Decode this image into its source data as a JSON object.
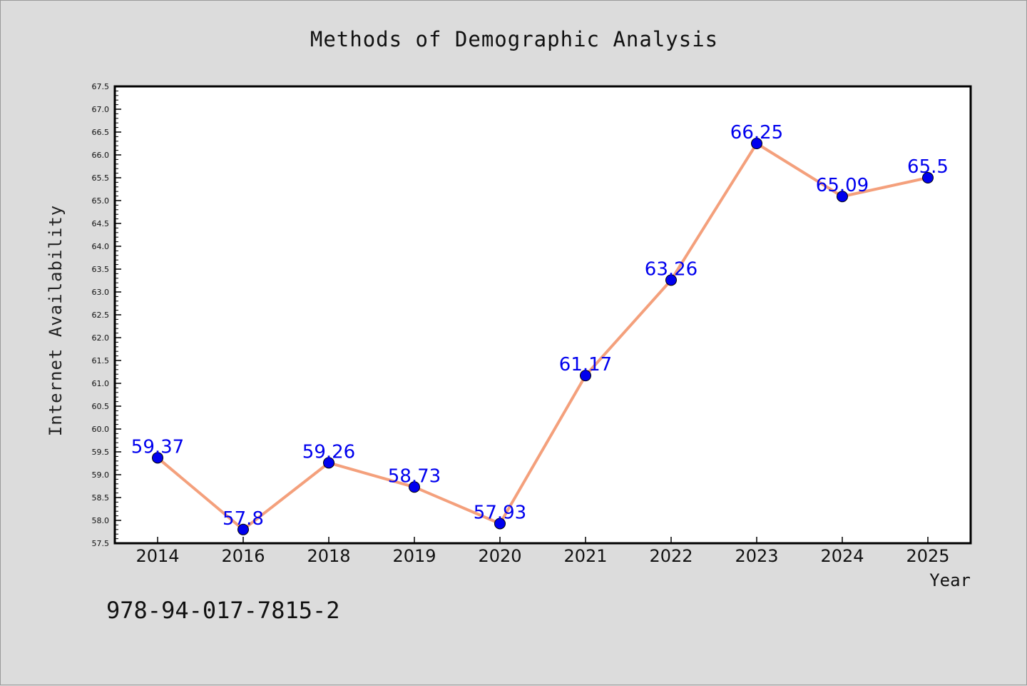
{
  "chart_data": {
    "type": "line",
    "title": "Methods of Demographic Analysis",
    "xlabel": "Year",
    "ylabel": "Internet Availability",
    "categories": [
      "2014",
      "2016",
      "2018",
      "2019",
      "2020",
      "2021",
      "2022",
      "2023",
      "2024",
      "2025"
    ],
    "series": [
      {
        "values": [
          59.37,
          57.8,
          59.26,
          58.73,
          57.93,
          61.17,
          63.26,
          66.25,
          65.09,
          65.5
        ],
        "labels": [
          "59.37",
          "57.8",
          "59.26",
          "58.73",
          "57.93",
          "61.17",
          "63.26",
          "66.25",
          "65.09",
          "65.5"
        ],
        "line_color": "#f4a07c",
        "marker_color": "#0000ee"
      }
    ],
    "ylim": [
      57.5,
      67.5
    ],
    "yticks": [
      "57.5",
      "58.0",
      "58.5",
      "59.0",
      "59.5",
      "60.0",
      "60.5",
      "61.0",
      "61.5",
      "62.0",
      "62.5",
      "63.0",
      "63.5",
      "64.0",
      "64.5",
      "65.0",
      "65.5",
      "66.0",
      "66.5",
      "67.0",
      "67.5"
    ],
    "grid": false,
    "legend": "none"
  },
  "footer": {
    "isbn": "978-94-017-7815-2"
  }
}
